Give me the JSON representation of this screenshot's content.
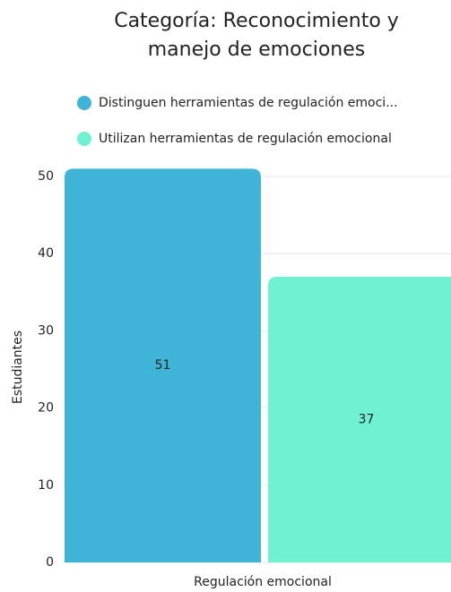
{
  "chart_data": {
    "type": "bar",
    "title": "Categoría: Reconocimiento y manejo de emociones",
    "categories": [
      "Regulación emocional"
    ],
    "series": [
      {
        "name": "Distinguen herramientas de regulación emoci...",
        "color": "#3fb4d6",
        "values": [
          51
        ]
      },
      {
        "name": "Utilizan herramientas de regulación emocional",
        "color": "#6ff2d2",
        "values": [
          37
        ]
      }
    ],
    "y_label": "Estudiantes",
    "ylim": [
      0,
      51
    ],
    "yticks": [
      0,
      10,
      20,
      30,
      40,
      50
    ],
    "grid": true,
    "legend": "top"
  }
}
